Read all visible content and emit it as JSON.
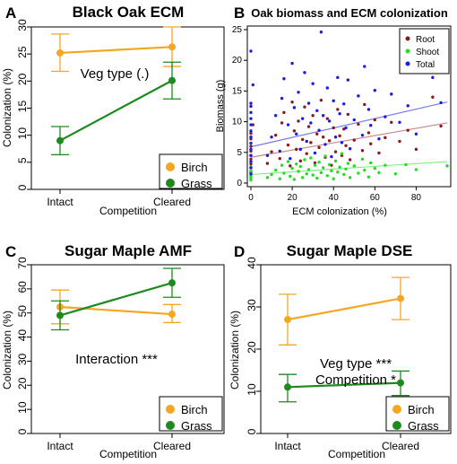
{
  "colors": {
    "birch": "#F5A623",
    "grass": "#1E8A1E",
    "root": "#8B1A1A",
    "shoot": "#22DD22",
    "total": "#1A1AEE",
    "root_fit": "#C98A8A",
    "shoot_fit": "#7FF07F",
    "total_fit": "#7A7AEE"
  },
  "chart_data": [
    {
      "panel": "A",
      "type": "line",
      "title": "Black Oak ECM",
      "xlabel": "Competition",
      "ylabel": "Colonization (%)",
      "categories": [
        "Intact",
        "Cleared"
      ],
      "ylim": [
        0,
        30
      ],
      "yticks": [
        0,
        5,
        10,
        15,
        20,
        25,
        30
      ],
      "annotation": [
        "Veg type (.)"
      ],
      "legend": {
        "position": "bottom-right",
        "entries": [
          "Birch",
          "Grass"
        ]
      },
      "series": [
        {
          "name": "Birch",
          "values": [
            25.2,
            26.3
          ],
          "err_low": [
            21.8,
            22.7
          ],
          "err_high": [
            28.7,
            30.0
          ]
        },
        {
          "name": "Grass",
          "values": [
            9.0,
            20.1
          ],
          "err_low": [
            6.4,
            16.7
          ],
          "err_high": [
            11.6,
            23.5
          ]
        }
      ]
    },
    {
      "panel": "B",
      "type": "scatter",
      "title": "Oak biomass and ECM colonization",
      "xlabel": "ECM colonization (%)",
      "ylabel": "Biomass (g)",
      "xlim": [
        0,
        95
      ],
      "ylim": [
        0,
        25
      ],
      "xticks": [
        0,
        20,
        40,
        60,
        80
      ],
      "yticks": [
        0,
        5,
        10,
        15,
        20,
        25
      ],
      "legend": {
        "position": "top-right",
        "entries": [
          "Root",
          "Shoot",
          "Total"
        ]
      },
      "fits": [
        {
          "name": "Root",
          "x": [
            0,
            95
          ],
          "y": [
            4.2,
            9.8
          ]
        },
        {
          "name": "Shoot",
          "x": [
            0,
            95
          ],
          "y": [
            1.4,
            3.5
          ]
        },
        {
          "name": "Total",
          "x": [
            0,
            95
          ],
          "y": [
            5.9,
            13.2
          ]
        }
      ],
      "series": [
        {
          "name": "Root",
          "points": [
            [
              0,
              2.5
            ],
            [
              0,
              3.1
            ],
            [
              0,
              3.9
            ],
            [
              0,
              4.5
            ],
            [
              0,
              5.2
            ],
            [
              0,
              6.0
            ],
            [
              0,
              7.2
            ],
            [
              0,
              8.1
            ],
            [
              0,
              1.8
            ],
            [
              1,
              9.5
            ],
            [
              8,
              3.2
            ],
            [
              10,
              5.1
            ],
            [
              12,
              7.8
            ],
            [
              14,
              4.0
            ],
            [
              15,
              9.8
            ],
            [
              16,
              11.5
            ],
            [
              18,
              6.2
            ],
            [
              19,
              2.8
            ],
            [
              20,
              13.2
            ],
            [
              21,
              8.5
            ],
            [
              22,
              5.5
            ],
            [
              23,
              10.1
            ],
            [
              24,
              3.6
            ],
            [
              25,
              7.1
            ],
            [
              26,
              12.4
            ],
            [
              27,
              4.8
            ],
            [
              28,
              9.2
            ],
            [
              29,
              6.6
            ],
            [
              30,
              11.0
            ],
            [
              31,
              3.3
            ],
            [
              32,
              8.0
            ],
            [
              33,
              5.8
            ],
            [
              34,
              13.5
            ],
            [
              35,
              7.5
            ],
            [
              36,
              4.2
            ],
            [
              37,
              10.5
            ],
            [
              38,
              6.9
            ],
            [
              39,
              2.9
            ],
            [
              40,
              9.0
            ],
            [
              41,
              5.1
            ],
            [
              42,
              12.0
            ],
            [
              43,
              7.7
            ],
            [
              44,
              4.5
            ],
            [
              45,
              8.8
            ],
            [
              46,
              6.1
            ],
            [
              47,
              11.2
            ],
            [
              48,
              3.8
            ],
            [
              50,
              7.0
            ],
            [
              52,
              9.6
            ],
            [
              54,
              5.3
            ],
            [
              55,
              12.8
            ],
            [
              57,
              8.2
            ],
            [
              58,
              6.4
            ],
            [
              60,
              10.3
            ],
            [
              62,
              4.9
            ],
            [
              65,
              7.4
            ],
            [
              68,
              9.9
            ],
            [
              72,
              6.8
            ],
            [
              76,
              8.6
            ],
            [
              80,
              5.5
            ],
            [
              88,
              14.0
            ],
            [
              92,
              9.3
            ]
          ]
        },
        {
          "name": "Shoot",
          "points": [
            [
              0,
              0.5
            ],
            [
              0,
              1.0
            ],
            [
              0,
              1.5
            ],
            [
              0,
              2.0
            ],
            [
              0,
              2.6
            ],
            [
              0,
              0.8
            ],
            [
              0,
              1.2
            ],
            [
              8,
              0.9
            ],
            [
              10,
              1.4
            ],
            [
              12,
              2.1
            ],
            [
              14,
              0.7
            ],
            [
              15,
              2.9
            ],
            [
              16,
              1.6
            ],
            [
              18,
              3.5
            ],
            [
              19,
              1.1
            ],
            [
              20,
              2.4
            ],
            [
              21,
              0.6
            ],
            [
              22,
              3.1
            ],
            [
              23,
              1.9
            ],
            [
              24,
              2.7
            ],
            [
              25,
              0.9
            ],
            [
              26,
              3.8
            ],
            [
              27,
              1.5
            ],
            [
              28,
              2.2
            ],
            [
              29,
              4.1
            ],
            [
              30,
              1.3
            ],
            [
              31,
              2.9
            ],
            [
              32,
              0.8
            ],
            [
              33,
              3.4
            ],
            [
              34,
              1.7
            ],
            [
              35,
              2.5
            ],
            [
              36,
              4.4
            ],
            [
              37,
              1.2
            ],
            [
              38,
              3.0
            ],
            [
              39,
              2.0
            ],
            [
              40,
              0.7
            ],
            [
              41,
              3.6
            ],
            [
              42,
              1.8
            ],
            [
              43,
              2.6
            ],
            [
              44,
              4.8
            ],
            [
              45,
              1.4
            ],
            [
              46,
              2.3
            ],
            [
              47,
              3.2
            ],
            [
              48,
              0.9
            ],
            [
              50,
              2.8
            ],
            [
              52,
              1.6
            ],
            [
              54,
              3.9
            ],
            [
              55,
              2.1
            ],
            [
              57,
              1.0
            ],
            [
              58,
              3.3
            ],
            [
              60,
              2.4
            ],
            [
              62,
              1.7
            ],
            [
              65,
              2.9
            ],
            [
              70,
              1.5
            ],
            [
              75,
              3.0
            ],
            [
              80,
              2.2
            ],
            [
              95,
              2.8
            ]
          ]
        },
        {
          "name": "Total",
          "points": [
            [
              0,
              1.5
            ],
            [
              0,
              2.5
            ],
            [
              0,
              3.5
            ],
            [
              0,
              4.5
            ],
            [
              0,
              5.5
            ],
            [
              0,
              6.5
            ],
            [
              0,
              7.5
            ],
            [
              0,
              8.5
            ],
            [
              0,
              9.5
            ],
            [
              0,
              10.5
            ],
            [
              0,
              11.5
            ],
            [
              0,
              12.5
            ],
            [
              0,
              13.0
            ],
            [
              0,
              21.5
            ],
            [
              1,
              16.0
            ],
            [
              8,
              4.5
            ],
            [
              10,
              7.5
            ],
            [
              12,
              11.0
            ],
            [
              14,
              5.2
            ],
            [
              15,
              13.8
            ],
            [
              16,
              17.0
            ],
            [
              18,
              9.5
            ],
            [
              19,
              4.0
            ],
            [
              20,
              19.5
            ],
            [
              21,
              12.3
            ],
            [
              22,
              8.0
            ],
            [
              23,
              14.8
            ],
            [
              24,
              5.5
            ],
            [
              25,
              10.5
            ],
            [
              26,
              18.0
            ],
            [
              27,
              6.8
            ],
            [
              28,
              13.0
            ],
            [
              29,
              9.8
            ],
            [
              30,
              16.2
            ],
            [
              31,
              4.9
            ],
            [
              32,
              11.8
            ],
            [
              33,
              8.6
            ],
            [
              34,
              24.6
            ],
            [
              35,
              11.0
            ],
            [
              36,
              6.3
            ],
            [
              37,
              15.5
            ],
            [
              38,
              10.1
            ],
            [
              39,
              4.3
            ],
            [
              40,
              13.4
            ],
            [
              41,
              7.5
            ],
            [
              42,
              17.2
            ],
            [
              43,
              11.3
            ],
            [
              44,
              6.6
            ],
            [
              45,
              12.9
            ],
            [
              46,
              9.0
            ],
            [
              47,
              16.8
            ],
            [
              48,
              5.6
            ],
            [
              50,
              10.3
            ],
            [
              52,
              14.2
            ],
            [
              54,
              7.8
            ],
            [
              55,
              19.0
            ],
            [
              57,
              12.0
            ],
            [
              58,
              9.4
            ],
            [
              60,
              15.1
            ],
            [
              62,
              7.2
            ],
            [
              65,
              10.8
            ],
            [
              68,
              14.5
            ],
            [
              72,
              9.9
            ],
            [
              76,
              12.6
            ],
            [
              80,
              8.0
            ],
            [
              88,
              17.2
            ],
            [
              92,
              13.1
            ]
          ]
        }
      ]
    },
    {
      "panel": "C",
      "type": "line",
      "title": "Sugar Maple AMF",
      "xlabel": "Competition",
      "ylabel": "Colonization (%)",
      "categories": [
        "Intact",
        "Cleared"
      ],
      "ylim": [
        0,
        70
      ],
      "yticks": [
        0,
        10,
        20,
        30,
        40,
        50,
        60,
        70
      ],
      "annotation": [
        "Interaction ***"
      ],
      "legend": {
        "position": "bottom-right",
        "entries": [
          "Birch",
          "Grass"
        ]
      },
      "series": [
        {
          "name": "Birch",
          "values": [
            52.5,
            49.5
          ],
          "err_low": [
            45.5,
            46.0
          ],
          "err_high": [
            59.5,
            53.5
          ]
        },
        {
          "name": "Grass",
          "values": [
            49.0,
            62.5
          ],
          "err_low": [
            43.0,
            56.5
          ],
          "err_high": [
            55.0,
            68.5
          ]
        }
      ]
    },
    {
      "panel": "D",
      "type": "line",
      "title": "Sugar Maple DSE",
      "xlabel": "Competition",
      "ylabel": "Colonization (%)",
      "categories": [
        "Intact",
        "Cleared"
      ],
      "ylim": [
        0,
        40
      ],
      "yticks": [
        0,
        10,
        20,
        30,
        40
      ],
      "annotation": [
        "Veg type ***",
        "Competition *"
      ],
      "legend": {
        "position": "bottom-right",
        "entries": [
          "Birch",
          "Grass"
        ]
      },
      "series": [
        {
          "name": "Birch",
          "values": [
            27.0,
            32.0
          ],
          "err_low": [
            21.0,
            27.0
          ],
          "err_high": [
            33.0,
            37.0
          ]
        },
        {
          "name": "Grass",
          "values": [
            11.0,
            12.0
          ],
          "err_low": [
            7.5,
            9.0
          ],
          "err_high": [
            14.0,
            14.8
          ]
        }
      ]
    }
  ]
}
